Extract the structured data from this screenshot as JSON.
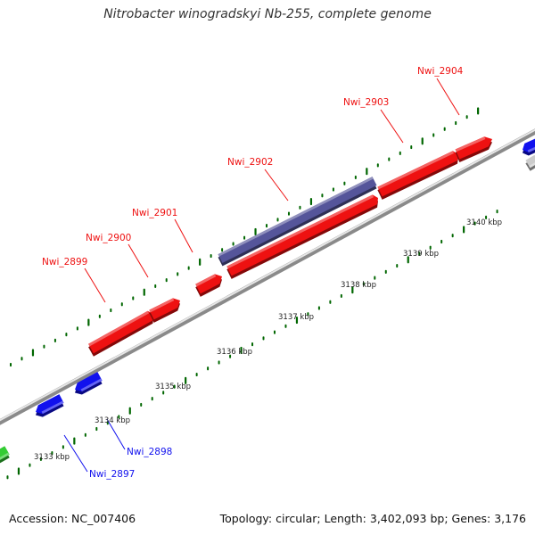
{
  "title": "Nitrobacter winogradskyi Nb-255, complete genome",
  "footer": {
    "accession": "Accession: NC_007406",
    "stats": "Topology: circular; Length: 3,402,093 bp; Genes: 3,176"
  },
  "colors": {
    "background": "#ffffff",
    "backbone": "#8a8a8a",
    "forward_gene": "#ee1111",
    "reverse_gene": "#1111ee",
    "other_feature": "#55559a",
    "rna_gene": "#33cc33",
    "partial_gene": "#cccccc",
    "ticks": "#006600"
  },
  "scale_labels": [
    {
      "text": "3133 kbp"
    },
    {
      "text": "3134 kbp"
    },
    {
      "text": "3135 kbp"
    },
    {
      "text": "3136 kbp"
    },
    {
      "text": "3137 kbp"
    },
    {
      "text": "3138 kbp"
    },
    {
      "text": "3139 kbp"
    },
    {
      "text": "3140 kbp"
    }
  ],
  "gene_labels": [
    {
      "text": "Nwi_2899",
      "strand": "forward"
    },
    {
      "text": "Nwi_2900",
      "strand": "forward"
    },
    {
      "text": "Nwi_2901",
      "strand": "forward"
    },
    {
      "text": "Nwi_2902",
      "strand": "forward"
    },
    {
      "text": "Nwi_2903",
      "strand": "forward"
    },
    {
      "text": "Nwi_2904",
      "strand": "forward"
    },
    {
      "text": "Nwi_2898",
      "strand": "reverse"
    },
    {
      "text": "Nwi_2897",
      "strand": "reverse"
    }
  ]
}
